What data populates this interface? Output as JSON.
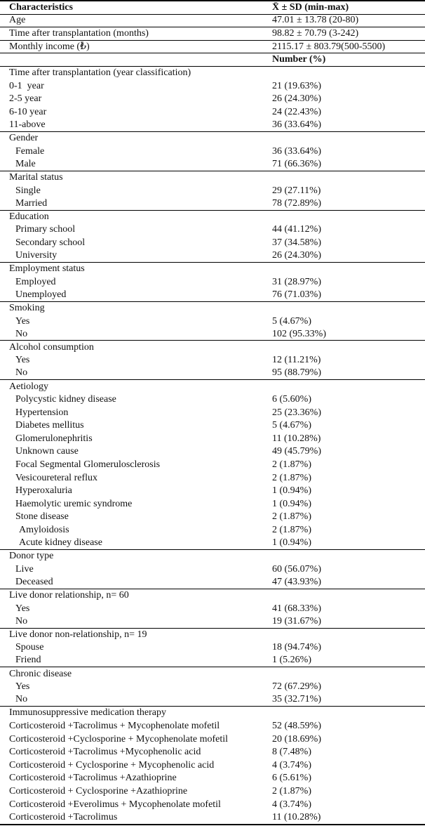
{
  "table": {
    "header": {
      "characteristics": "Characteristics",
      "stat": "X̄ ± SD (min-max)"
    },
    "stat_rows": [
      {
        "label": "Age",
        "value": "47.01 ± 13.78 (20-80)"
      },
      {
        "label": "Time after transplantation (months)",
        "value": "98.82 ± 70.79 (3-242)"
      },
      {
        "label": "Monthly income (₺)",
        "value": "2115.17 ± 803.79(500-5500)"
      }
    ],
    "subheader": {
      "label": "",
      "value": "Number (%)"
    },
    "sections": [
      {
        "title": "Time after transplantation (year classification)",
        "rows": [
          {
            "label": "0-1  year",
            "value": "21 (19.63%)",
            "indent": 0
          },
          {
            "label": "2-5 year",
            "value": "26 (24.30%)",
            "indent": 0
          },
          {
            "label": "6-10 year",
            "value": "24 (22.43%)",
            "indent": 0
          },
          {
            "label": "11-above",
            "value": "36 (33.64%)",
            "indent": 0
          }
        ]
      },
      {
        "title": "Gender",
        "rows": [
          {
            "label": "Female",
            "value": "36 (33.64%)",
            "indent": 1
          },
          {
            "label": "Male",
            "value": "71 (66.36%)",
            "indent": 1
          }
        ]
      },
      {
        "title": "Marital status",
        "rows": [
          {
            "label": "Single",
            "value": "29 (27.11%)",
            "indent": 1
          },
          {
            "label": "Married",
            "value": "78 (72.89%)",
            "indent": 1
          }
        ]
      },
      {
        "title": "Education",
        "rows": [
          {
            "label": "Primary school",
            "value": "44 (41.12%)",
            "indent": 1
          },
          {
            "label": "Secondary school",
            "value": "37 (34.58%)",
            "indent": 1
          },
          {
            "label": "University",
            "value": "26 (24.30%)",
            "indent": 1
          }
        ]
      },
      {
        "title": "Employment status",
        "rows": [
          {
            "label": "Employed",
            "value": "31 (28.97%)",
            "indent": 1
          },
          {
            "label": "Unemployed",
            "value": "76 (71.03%)",
            "indent": 1
          }
        ]
      },
      {
        "title": "Smoking",
        "rows": [
          {
            "label": "Yes",
            "value": "5 (4.67%)",
            "indent": 1
          },
          {
            "label": "No",
            "value": "102 (95.33%)",
            "indent": 1
          }
        ]
      },
      {
        "title": "Alcohol consumption",
        "rows": [
          {
            "label": "Yes",
            "value": "12 (11.21%)",
            "indent": 1
          },
          {
            "label": "No",
            "value": "95 (88.79%)",
            "indent": 1
          }
        ]
      },
      {
        "title": "Aetiology",
        "rows": [
          {
            "label": "Polycystic kidney disease",
            "value": "6 (5.60%)",
            "indent": 1
          },
          {
            "label": "Hypertension",
            "value": "25 (23.36%)",
            "indent": 1
          },
          {
            "label": "Diabetes mellitus",
            "value": "5 (4.67%)",
            "indent": 1
          },
          {
            "label": "Glomerulonephritis",
            "value": "11 (10.28%)",
            "indent": 1
          },
          {
            "label": "Unknown cause",
            "value": "49 (45.79%)",
            "indent": 1
          },
          {
            "label": "Focal Segmental Glomerulosclerosis",
            "value": "2 (1.87%)",
            "indent": 1
          },
          {
            "label": "Vesicoureteral reflux",
            "value": "2 (1.87%)",
            "indent": 1
          },
          {
            "label": "Hyperoxaluria",
            "value": "1 (0.94%)",
            "indent": 1
          },
          {
            "label": "Haemolytic uremic syndrome",
            "value": "1 (0.94%)",
            "indent": 1
          },
          {
            "label": "Stone disease",
            "value": "2 (1.87%)",
            "indent": 1
          },
          {
            "label": "Amyloidosis",
            "value": "2 (1.87%)",
            "indent": 2
          },
          {
            "label": "Acute kidney disease",
            "value": "1 (0.94%)",
            "indent": 2
          }
        ]
      },
      {
        "title": "Donor type",
        "rows": [
          {
            "label": "Live",
            "value": "60 (56.07%)",
            "indent": 1
          },
          {
            "label": "Deceased",
            "value": "47 (43.93%)",
            "indent": 1
          }
        ]
      },
      {
        "title": "Live donor relationship, n= 60",
        "rows": [
          {
            "label": "Yes",
            "value": "41 (68.33%)",
            "indent": 1
          },
          {
            "label": "No",
            "value": "19 (31.67%)",
            "indent": 1
          }
        ]
      },
      {
        "title": "Live donor non-relationship, n= 19",
        "rows": [
          {
            "label": "Spouse",
            "value": "18 (94.74%)",
            "indent": 1
          },
          {
            "label": "Friend",
            "value": "1 (5.26%)",
            "indent": 1
          }
        ]
      },
      {
        "title": "Chronic disease",
        "rows": [
          {
            "label": "Yes",
            "value": "72 (67.29%)",
            "indent": 1
          },
          {
            "label": "No",
            "value": "35 (32.71%)",
            "indent": 1
          }
        ]
      },
      {
        "title": "Immunosuppressive medication therapy",
        "rows": [
          {
            "label": "Corticosteroid +Tacrolimus + Mycophenolate mofetil",
            "value": "52 (48.59%)",
            "indent": 0
          },
          {
            "label": "Corticosteroid +Cyclosporine + Mycophenolate mofetil",
            "value": "20 (18.69%)",
            "indent": 0
          },
          {
            "label": "Corticosteroid +Tacrolimus +Mycophenolic acid",
            "value": "8 (7.48%)",
            "indent": 0
          },
          {
            "label": "Corticosteroid + Cyclosporine + Mycophenolic acid",
            "value": "4 (3.74%)",
            "indent": 0
          },
          {
            "label": "Corticosteroid +Tacrolimus +Azathioprine",
            "value": "6 (5.61%)",
            "indent": 0
          },
          {
            "label": "Corticosteroid + Cyclosporine +Azathioprine",
            "value": "2 (1.87%)",
            "indent": 0
          },
          {
            "label": "Corticosteroid +Everolimus + Mycophenolate mofetil",
            "value": "4 (3.74%)",
            "indent": 0
          },
          {
            "label": "Corticosteroid +Tacrolimus",
            "value": "11 (10.28%)",
            "indent": 0
          }
        ]
      }
    ]
  }
}
